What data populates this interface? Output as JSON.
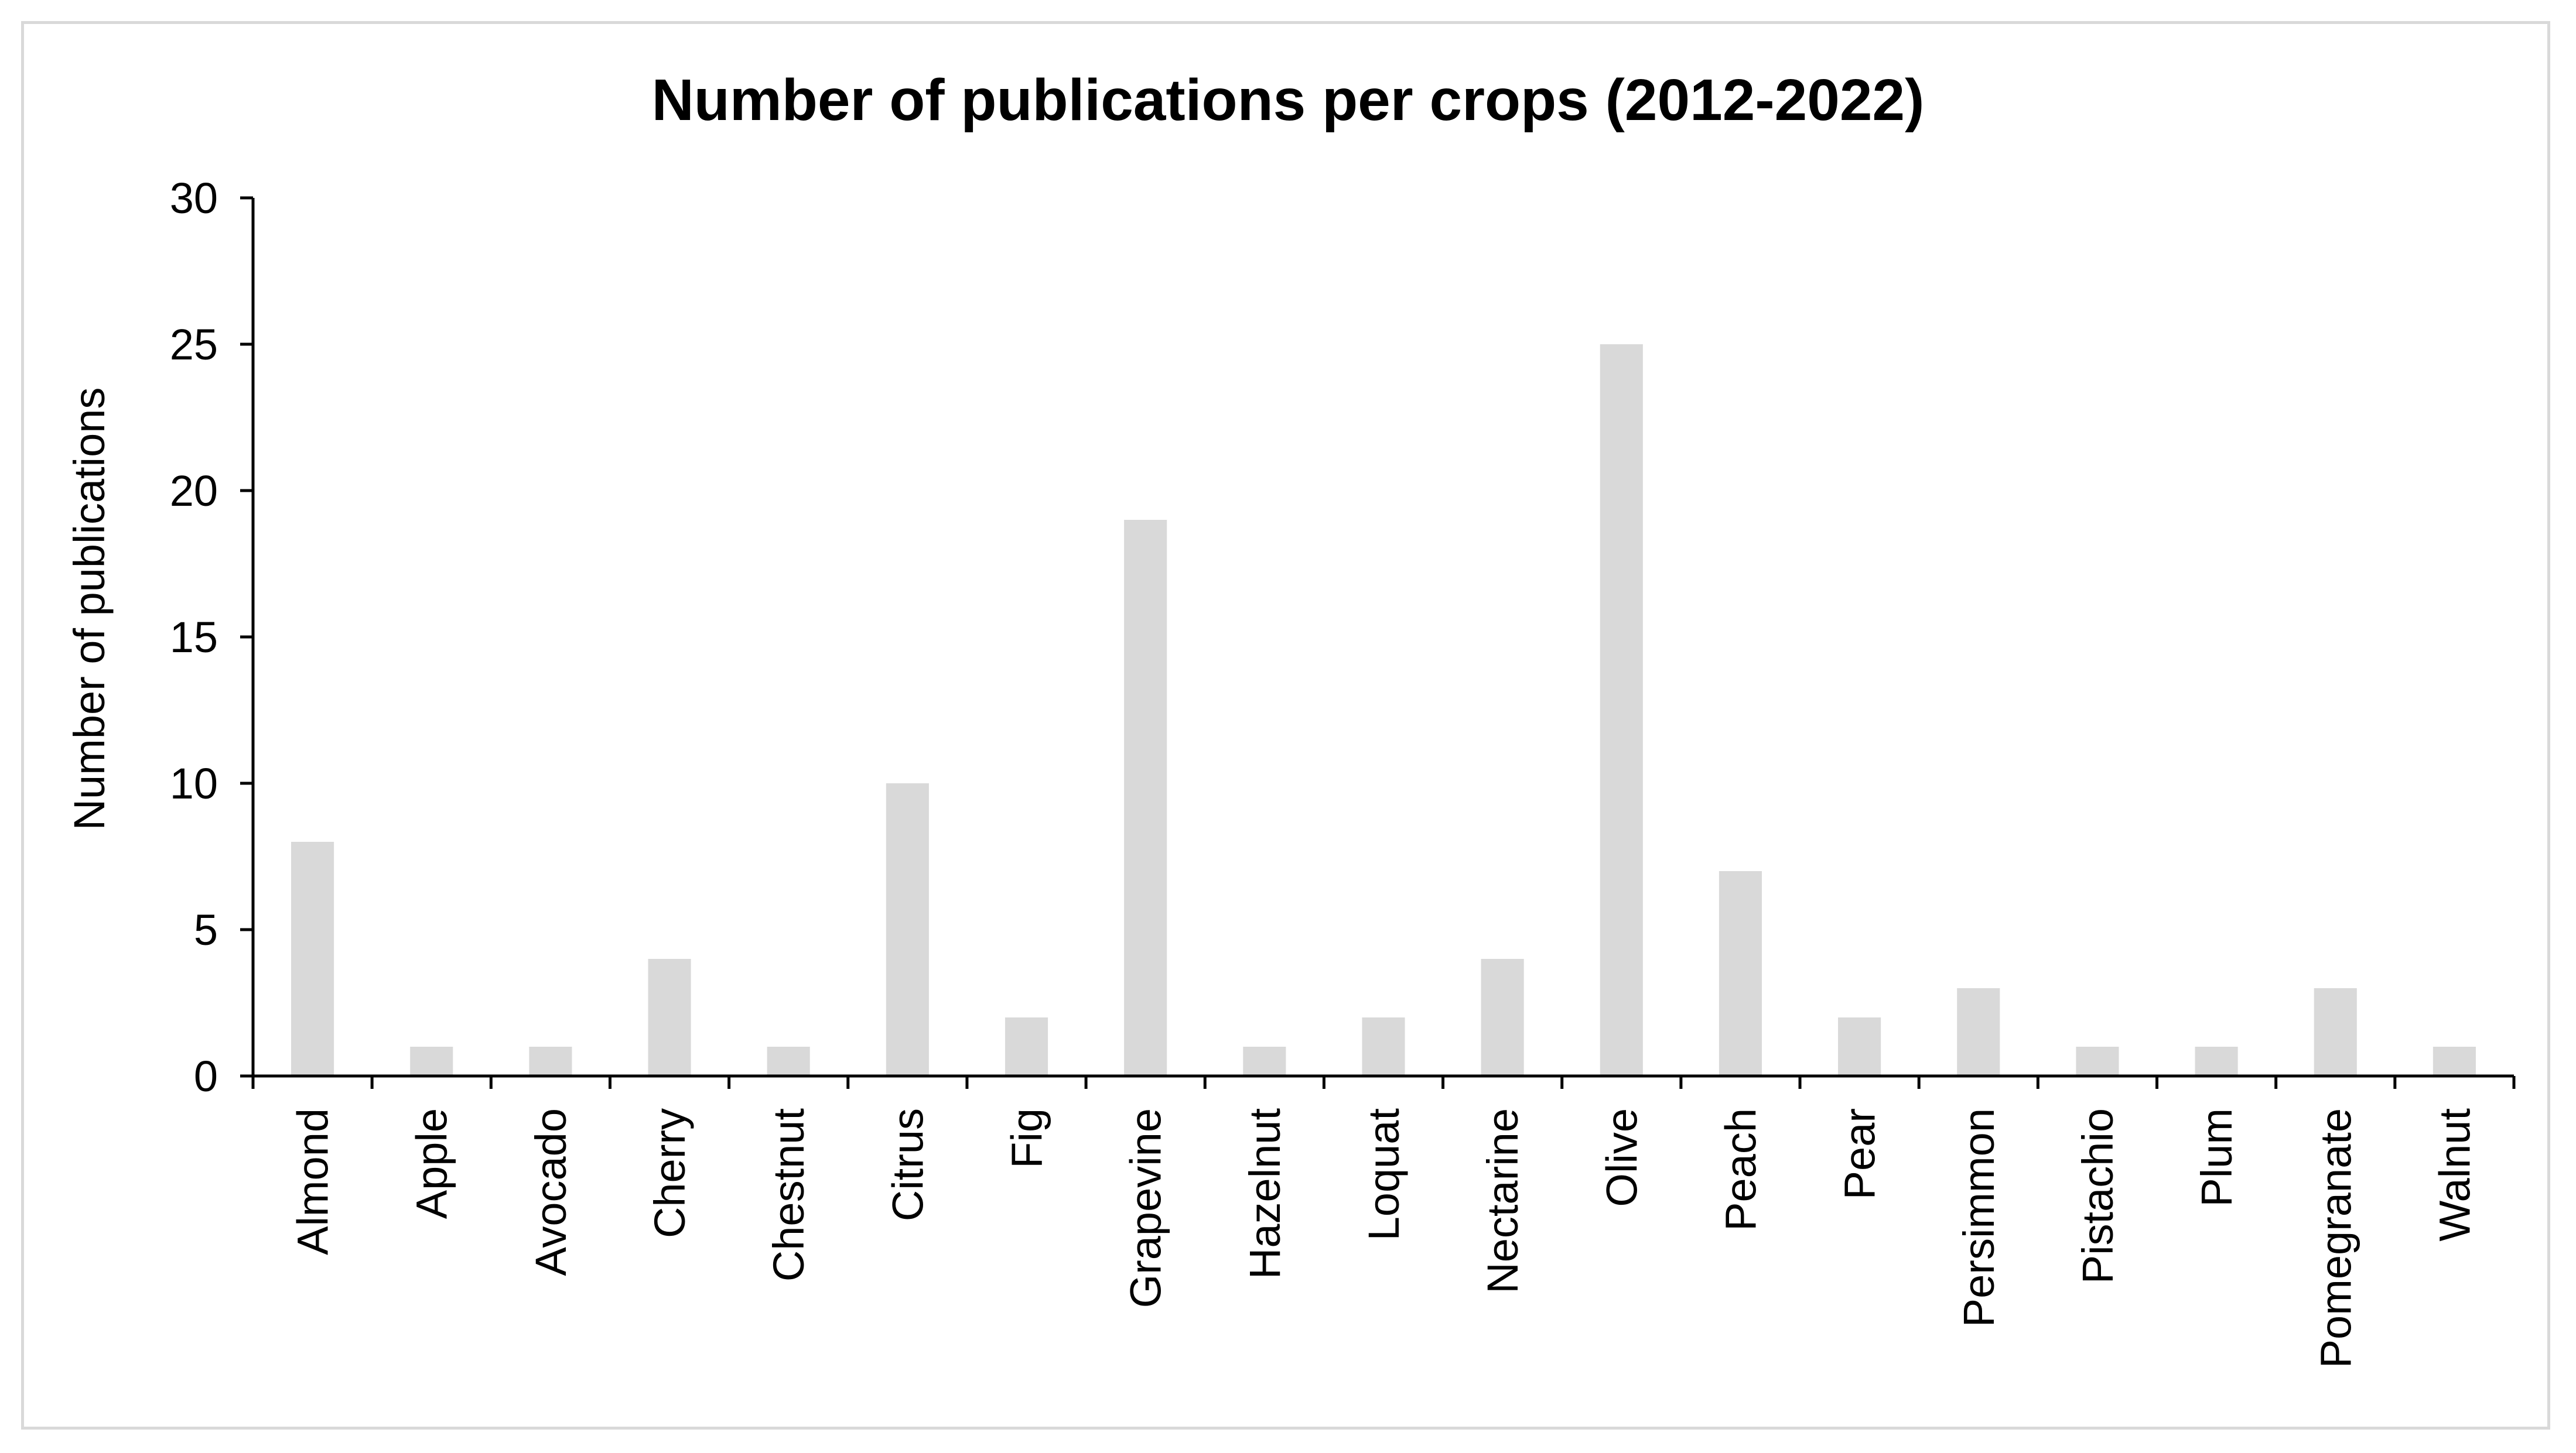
{
  "chart_data": {
    "type": "bar",
    "title": "Number of publications per crops (2012-2022)",
    "xlabel": "",
    "ylabel": "Number of publications",
    "ylim": [
      0,
      30
    ],
    "yticks": [
      0,
      5,
      10,
      15,
      20,
      25,
      30
    ],
    "grid": false,
    "legend": "none",
    "bar_color": "#d9d9d9",
    "categories": [
      "Almond",
      "Apple",
      "Avocado",
      "Cherry",
      "Chestnut",
      "Citrus",
      "Fig",
      "Grapevine",
      "Hazelnut",
      "Loquat",
      "Nectarine",
      "Olive",
      "Peach",
      "Pear",
      "Persimmon",
      "Pistachio",
      "Plum",
      "Pomegranate",
      "Walnut"
    ],
    "values": [
      8,
      1,
      1,
      4,
      1,
      10,
      2,
      19,
      1,
      2,
      4,
      25,
      7,
      2,
      3,
      1,
      1,
      3,
      1
    ]
  }
}
